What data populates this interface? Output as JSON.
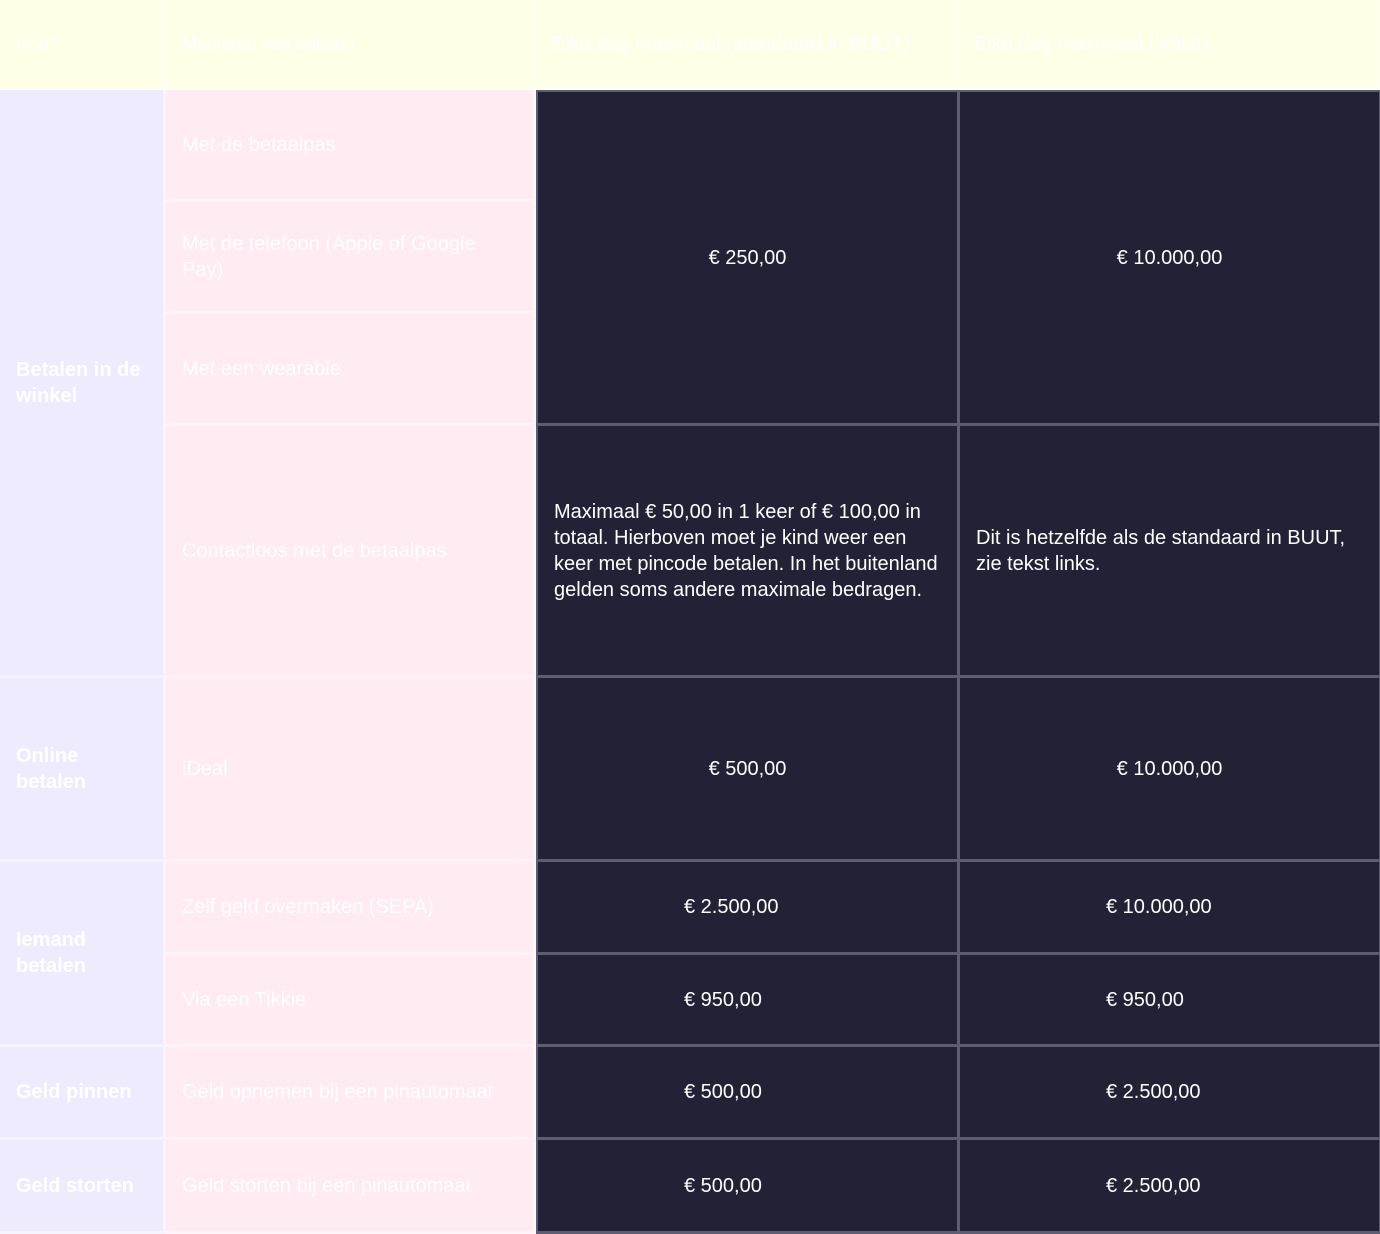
{
  "table": {
    "headers": [
      "Hoe?",
      "Manieren van betalen",
      "Elke dag maximaal (standaard in BUUT)",
      "Elke dag maximaal (limiet)"
    ],
    "rows": [
      {
        "category": "Betalen in de winkel",
        "method": "Met de betaalpas",
        "standard": "€ 250,00",
        "limit": "€ 10.000,00"
      },
      {
        "method": "Met de telefoon (Apple of Google Pay)"
      },
      {
        "method": "Met een wearable"
      },
      {
        "method": "Contactloos met de betaalpas",
        "standard": "Maximaal € 50,00 in 1 keer of € 100,00 in totaal. Hierboven moet je kind weer een keer met pincode betalen. In het buitenland gelden soms andere maximale bedragen.",
        "limit": "Dit is hetzelfde als de standaard in BUUT, zie tekst links."
      },
      {
        "category": "Online betalen",
        "method": "iDeal",
        "standard": "€ 500,00",
        "limit": "€ 10.000,00"
      },
      {
        "category": "Iemand betalen",
        "method": "Zelf geld overmaken (SEPA)",
        "standard": "€ 2.500,00",
        "limit": "€ 10.000,00"
      },
      {
        "method": "Via een Tikkie",
        "standard": "€ 950,00",
        "limit": "€ 950,00"
      },
      {
        "category": "Geld pinnen",
        "method": "Geld opnemen bij een pinautomaat",
        "standard": "€ 500,00",
        "limit": "€ 2.500,00"
      },
      {
        "category": "Geld storten",
        "method": "Geld storten bij een pinautomaat",
        "standard": "€ 500,00",
        "limit": "€ 2.500,00"
      }
    ]
  }
}
